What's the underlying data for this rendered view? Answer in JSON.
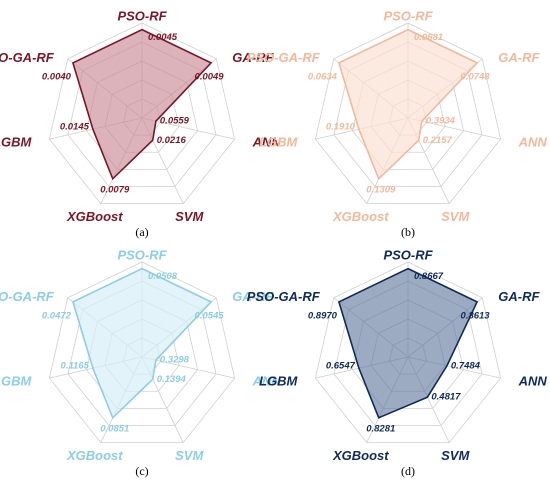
{
  "chart_data": [
    {
      "type": "radar",
      "panel_label": "(a)",
      "categories": [
        "PSO-RF",
        "GA-RF",
        "ANN",
        "SVM",
        "XGBoost",
        "LGBM",
        "PSO-GA-RF"
      ],
      "values": [
        0.0045,
        0.0049,
        0.0559,
        0.0216,
        0.0079,
        0.0145,
        0.004
      ],
      "value_labels": [
        "0.0045",
        "0.0049",
        "0.0559",
        "0.0216",
        "0.0079",
        "0.0145",
        "0.0040"
      ],
      "plotted_levels": [
        0.93,
        0.93,
        0.15,
        0.26,
        0.71,
        0.53,
        0.93
      ],
      "color": "#7b1626",
      "fill_color": "#c98b97",
      "fill_opacity": 0.65,
      "grid": true
    },
    {
      "type": "radar",
      "panel_label": "(b)",
      "categories": [
        "PSO-RF",
        "GA-RF",
        "ANN",
        "SVM",
        "XGBoost",
        "LGBM",
        "PSO-GA-RF"
      ],
      "values": [
        0.0681,
        0.0748,
        0.3934,
        0.2157,
        0.1309,
        0.191,
        0.0634
      ],
      "value_labels": [
        "0.0681",
        "0.0748",
        "0.3934",
        "0.2157",
        "0.1309",
        "0.1910",
        "0.0634"
      ],
      "plotted_levels": [
        0.93,
        0.93,
        0.15,
        0.26,
        0.71,
        0.53,
        0.93
      ],
      "color": "#f4b89a",
      "fill_color": "#fbe1d3",
      "fill_opacity": 0.7,
      "grid": true
    },
    {
      "type": "radar",
      "panel_label": "(c)",
      "categories": [
        "PSO-RF",
        "GA-RF",
        "ANN",
        "SVM",
        "XGBoost",
        "LGBM",
        "PSO-GA-RF"
      ],
      "values": [
        0.0508,
        0.0545,
        0.3298,
        0.1394,
        0.0851,
        0.1165,
        0.0472
      ],
      "value_labels": [
        "0.0508",
        "0.0545",
        "0.3298",
        "0.1394",
        "0.0851",
        "0.1165",
        "0.0472"
      ],
      "plotted_levels": [
        0.93,
        0.93,
        0.15,
        0.26,
        0.71,
        0.53,
        0.93
      ],
      "color": "#8ccde8",
      "fill_color": "#d7eef8",
      "fill_opacity": 0.7,
      "grid": true
    },
    {
      "type": "radar",
      "panel_label": "(d)",
      "categories": [
        "PSO-RF",
        "GA-RF",
        "ANN",
        "SVM",
        "XGBoost",
        "LGBM",
        "PSO-GA-RF"
      ],
      "values": [
        0.8667,
        0.8613,
        0.7484,
        0.4817,
        0.8281,
        0.6547,
        0.897
      ],
      "value_labels": [
        "0.8667",
        "0.8613",
        "0.7484",
        "0.4817",
        "0.8281",
        "0.6547",
        "0.8970"
      ],
      "plotted_levels": [
        0.93,
        0.93,
        0.42,
        0.47,
        0.71,
        0.53,
        0.93
      ],
      "color": "#0f2a5c",
      "fill_color": "#5a7399",
      "fill_opacity": 0.6,
      "grid": true
    }
  ]
}
